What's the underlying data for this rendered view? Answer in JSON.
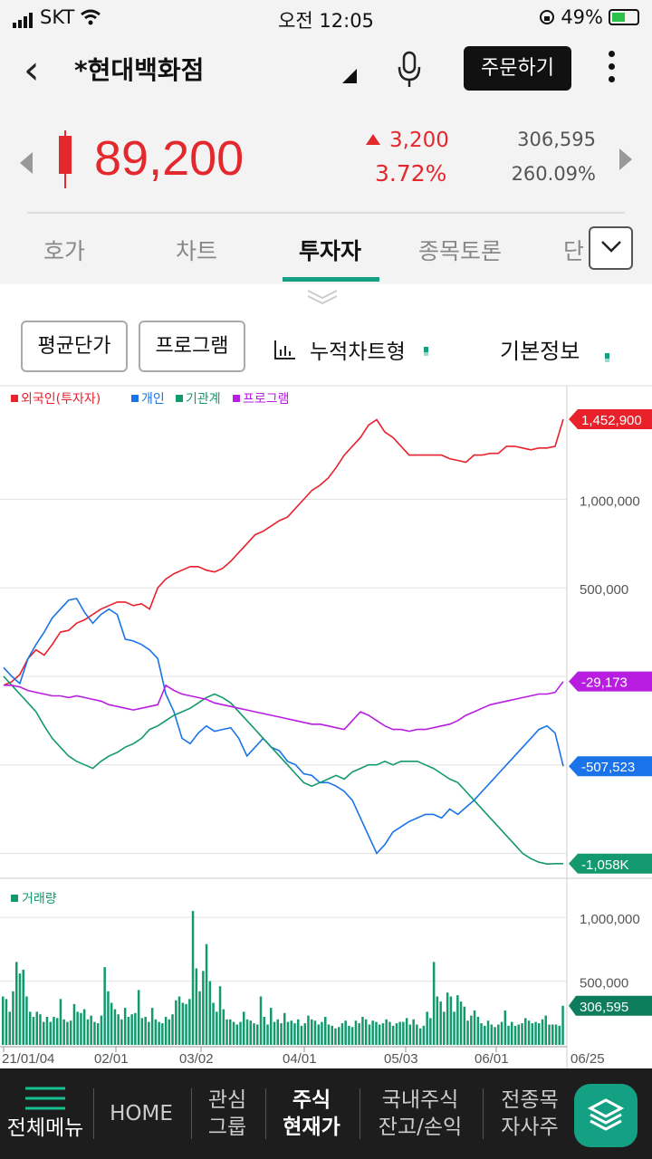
{
  "status_bar": {
    "carrier": "SKT",
    "time": "오전 12:05",
    "battery": "49%"
  },
  "header": {
    "stock_name": "*현대백화점",
    "order_button": "주문하기"
  },
  "quote": {
    "price": "89,200",
    "change": "3,200",
    "change_pct": "3.72%",
    "volume": "306,595",
    "volume_pct": "260.09%"
  },
  "tabs": [
    "호가",
    "차트",
    "투자자",
    "종목토론",
    "단"
  ],
  "active_tab": "투자자",
  "options": {
    "avg_price": "평균단가",
    "program": "프로그램",
    "cumulative": "누적차트형",
    "basic_info": "기본정보"
  },
  "colors": {
    "foreign": "#e8212b",
    "individual": "#1a73e8",
    "institution": "#13996e",
    "program": "#b81ee0",
    "volume": "#13996e",
    "accent": "#14a083"
  },
  "chart_data": [
    {
      "type": "line",
      "legend": [
        "외국인(투자자)",
        "개인",
        "기관계",
        "프로그램"
      ],
      "y_ticks": [
        "1,000,000",
        "500,000"
      ],
      "ylim": [
        -1100000,
        1550000
      ],
      "series": [
        {
          "name": "외국인(투자자)",
          "last_label": "1,452,900",
          "values": [
            -50000,
            -30000,
            10000,
            100000,
            150000,
            120000,
            180000,
            250000,
            260000,
            300000,
            320000,
            350000,
            380000,
            400000,
            420000,
            420000,
            400000,
            410000,
            380000,
            500000,
            550000,
            580000,
            600000,
            620000,
            620000,
            600000,
            590000,
            610000,
            650000,
            700000,
            750000,
            800000,
            820000,
            850000,
            880000,
            900000,
            950000,
            1000000,
            1050000,
            1080000,
            1120000,
            1180000,
            1250000,
            1300000,
            1350000,
            1420000,
            1450000,
            1380000,
            1350000,
            1300000,
            1250000,
            1250000,
            1250000,
            1250000,
            1250000,
            1230000,
            1220000,
            1210000,
            1250000,
            1250000,
            1260000,
            1260000,
            1300000,
            1300000,
            1290000,
            1280000,
            1290000,
            1290000,
            1300000,
            1452900
          ]
        },
        {
          "name": "개인",
          "values": [
            50000,
            0,
            -40000,
            100000,
            180000,
            250000,
            330000,
            380000,
            430000,
            440000,
            360000,
            300000,
            350000,
            380000,
            350000,
            210000,
            200000,
            180000,
            150000,
            100000,
            -100000,
            -200000,
            -350000,
            -380000,
            -320000,
            -280000,
            -310000,
            -300000,
            -290000,
            -350000,
            -450000,
            -400000,
            -350000,
            -400000,
            -420000,
            -480000,
            -500000,
            -550000,
            -560000,
            -600000,
            -600000,
            -620000,
            -650000,
            -700000,
            -800000,
            -900000,
            -1000000,
            -950000,
            -880000,
            -850000,
            -820000,
            -800000,
            -780000,
            -780000,
            -800000,
            -750000,
            -780000,
            -740000,
            -700000,
            -650000,
            -600000,
            -550000,
            -500000,
            -450000,
            -400000,
            -350000,
            -300000,
            -280000,
            -320000,
            -507523
          ]
        },
        {
          "name": "기관계",
          "values": [
            0,
            -50000,
            -100000,
            -150000,
            -200000,
            -280000,
            -350000,
            -400000,
            -450000,
            -480000,
            -500000,
            -520000,
            -480000,
            -450000,
            -430000,
            -400000,
            -380000,
            -350000,
            -300000,
            -280000,
            -250000,
            -220000,
            -200000,
            -180000,
            -150000,
            -120000,
            -100000,
            -120000,
            -150000,
            -200000,
            -250000,
            -300000,
            -350000,
            -400000,
            -450000,
            -500000,
            -550000,
            -600000,
            -620000,
            -600000,
            -580000,
            -560000,
            -580000,
            -540000,
            -520000,
            -500000,
            -500000,
            -480000,
            -500000,
            -480000,
            -480000,
            -480000,
            -500000,
            -520000,
            -550000,
            -580000,
            -600000,
            -650000,
            -700000,
            -750000,
            -800000,
            -850000,
            -900000,
            -950000,
            -1000000,
            -1030000,
            -1050000,
            -1060000,
            -1058000,
            -1058000
          ]
        },
        {
          "name": "프로그램",
          "last_label": "-29,173",
          "values": [
            -50000,
            -50000,
            -60000,
            -80000,
            -90000,
            -100000,
            -110000,
            -110000,
            -120000,
            -110000,
            -120000,
            -130000,
            -140000,
            -160000,
            -170000,
            -180000,
            -190000,
            -180000,
            -170000,
            -160000,
            -50000,
            -80000,
            -100000,
            -110000,
            -120000,
            -130000,
            -150000,
            -160000,
            -170000,
            -180000,
            -190000,
            -200000,
            -210000,
            -220000,
            -230000,
            -240000,
            -250000,
            -260000,
            -270000,
            -270000,
            -280000,
            -290000,
            -300000,
            -250000,
            -200000,
            -220000,
            -250000,
            -280000,
            -300000,
            -300000,
            -310000,
            -300000,
            -300000,
            -290000,
            -280000,
            -270000,
            -250000,
            -220000,
            -200000,
            -180000,
            -160000,
            -150000,
            -140000,
            -130000,
            -120000,
            -110000,
            -100000,
            -100000,
            -90000,
            -29173
          ]
        }
      ],
      "marker_labels": {
        "individual": "-507,523",
        "institution": "-1,058K"
      }
    },
    {
      "type": "bar",
      "legend": [
        "거래량"
      ],
      "y_ticks": [
        "1,000,000",
        "500,000"
      ],
      "ylim": [
        0,
        1150000
      ],
      "last_label": "306,595",
      "x_ticks": [
        "21/01/04",
        "02/01",
        "03/02",
        "04/01",
        "05/03",
        "06/01",
        "06/25"
      ],
      "values": [
        380000,
        360000,
        260000,
        420000,
        650000,
        560000,
        590000,
        380000,
        260000,
        220000,
        260000,
        240000,
        180000,
        220000,
        180000,
        220000,
        210000,
        360000,
        200000,
        180000,
        190000,
        320000,
        260000,
        250000,
        280000,
        200000,
        230000,
        180000,
        170000,
        230000,
        610000,
        420000,
        330000,
        280000,
        240000,
        200000,
        290000,
        220000,
        240000,
        250000,
        430000,
        210000,
        220000,
        180000,
        290000,
        200000,
        180000,
        170000,
        220000,
        200000,
        240000,
        350000,
        380000,
        330000,
        320000,
        360000,
        1050000,
        600000,
        420000,
        580000,
        790000,
        500000,
        330000,
        260000,
        460000,
        280000,
        200000,
        200000,
        180000,
        160000,
        180000,
        260000,
        200000,
        190000,
        170000,
        160000,
        380000,
        220000,
        160000,
        290000,
        180000,
        200000,
        170000,
        250000,
        180000,
        190000,
        170000,
        200000,
        150000,
        170000,
        230000,
        200000,
        190000,
        160000,
        180000,
        220000,
        160000,
        150000,
        130000,
        140000,
        170000,
        190000,
        150000,
        140000,
        190000,
        170000,
        220000,
        200000,
        160000,
        190000,
        180000,
        160000,
        170000,
        200000,
        180000,
        150000,
        170000,
        180000,
        180000,
        210000,
        160000,
        200000,
        160000,
        130000,
        150000,
        260000,
        210000,
        650000,
        380000,
        340000,
        260000,
        410000,
        380000,
        260000,
        390000,
        340000,
        300000,
        190000,
        230000,
        270000,
        220000,
        170000,
        150000,
        190000,
        160000,
        140000,
        160000,
        180000,
        270000,
        150000,
        180000,
        150000,
        160000,
        170000,
        210000,
        190000,
        170000,
        180000,
        170000,
        200000,
        230000,
        160000,
        160000,
        160000,
        150000,
        306595
      ]
    }
  ],
  "bottom_nav": {
    "menu": "전체메뉴",
    "home": "HOME",
    "interest": [
      "관심",
      "그룹"
    ],
    "stock_current": [
      "주식",
      "현재가"
    ],
    "domestic": [
      "국내주식",
      "잔고/손익"
    ],
    "all_stocks": [
      "전종목",
      "자사주"
    ]
  }
}
